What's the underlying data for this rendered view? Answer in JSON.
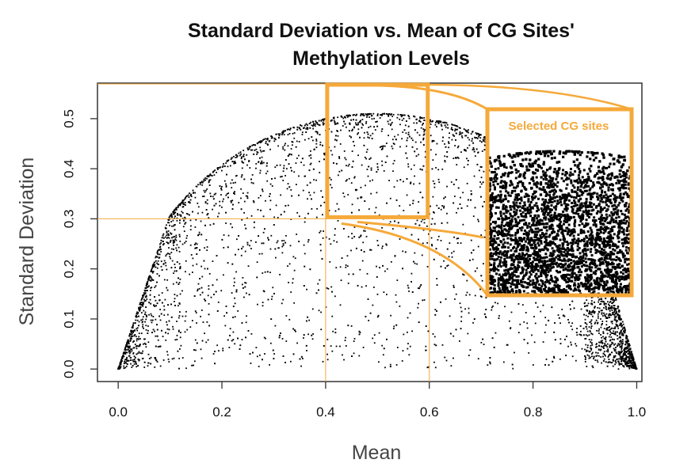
{
  "chart_data": {
    "type": "scatter",
    "title": "Standard Deviation vs. Mean of CG Sites' Methylation Levels",
    "title_lines": [
      "Standard Deviation vs. Mean of CG Sites'",
      "Methylation Levels"
    ],
    "xlabel": "Mean",
    "ylabel": "Standard Deviation",
    "xlim": [
      -0.04,
      1.01
    ],
    "ylim": [
      -0.025,
      0.571
    ],
    "xticks": [
      "0.0",
      "0.2",
      "0.4",
      "0.6",
      "0.8",
      "1.0"
    ],
    "yticks": [
      "0.0",
      "0.1",
      "0.2",
      "0.3",
      "0.4",
      "0.5"
    ],
    "grid": false,
    "point_color": "#000000",
    "highlight_color": "#f5a93a",
    "selection": {
      "x": [
        0.4,
        0.6
      ],
      "y": [
        0.3,
        0.571
      ]
    },
    "inset_label": "Selected CG sites"
  }
}
